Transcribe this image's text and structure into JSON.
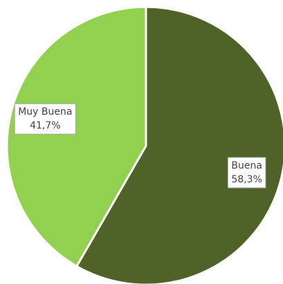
{
  "chart_data": {
    "type": "pie",
    "categories": [
      "Buena",
      "Muy Buena"
    ],
    "values": [
      58.3,
      41.7
    ],
    "value_labels": [
      "58,3%",
      "41,7%"
    ],
    "colors": [
      "#4f6228",
      "#92d050"
    ]
  }
}
